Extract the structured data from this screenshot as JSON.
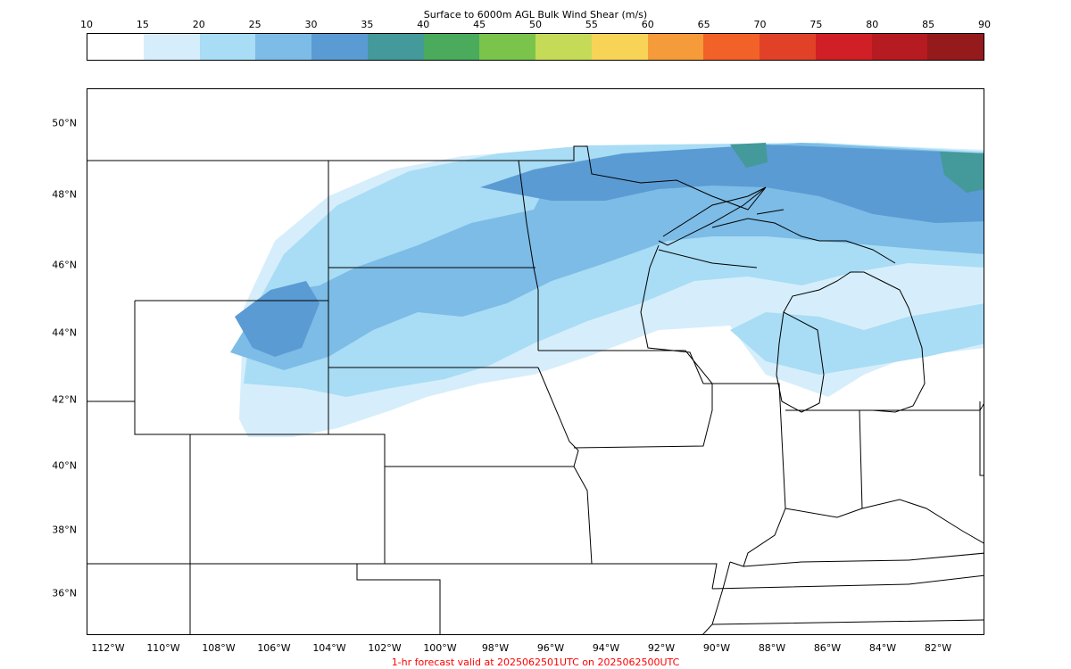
{
  "colorbar": {
    "title": "Surface to 6000m AGL Bulk Wind Shear (m/s)",
    "ticks": [
      "10",
      "15",
      "20",
      "25",
      "30",
      "35",
      "40",
      "45",
      "50",
      "55",
      "60",
      "65",
      "70",
      "75",
      "80",
      "85",
      "90"
    ],
    "colors": [
      "#ffffff",
      "#d6eefb",
      "#a9dcf5",
      "#7cbce6",
      "#5a9bd3",
      "#44999a",
      "#4aab5c",
      "#7bc44c",
      "#c5db57",
      "#f8d456",
      "#f59b3a",
      "#f26128",
      "#e14227",
      "#d11f27",
      "#b51b20",
      "#941a1c"
    ]
  },
  "axes": {
    "lat_labels": [
      "50°N",
      "48°N",
      "46°N",
      "44°N",
      "42°N",
      "40°N",
      "38°N",
      "36°N"
    ],
    "lon_labels": [
      "112°W",
      "110°W",
      "108°W",
      "106°W",
      "104°W",
      "102°W",
      "100°W",
      "98°W",
      "96°W",
      "94°W",
      "92°W",
      "90°W",
      "88°W",
      "86°W",
      "84°W",
      "82°W"
    ]
  },
  "footer": "1-hr forecast valid at 2025062501UTC on 2025062500UTC",
  "map": {
    "region": "Northern Plains and Upper Midwest, USA",
    "field": "bulk wind shear",
    "shear_bands": {
      "far_north_max": "35-40",
      "northern_core": "30-35",
      "plains_band": "25-30",
      "central_band": "20-25",
      "southern_fringe": "15-20",
      "background": "10-15"
    }
  }
}
